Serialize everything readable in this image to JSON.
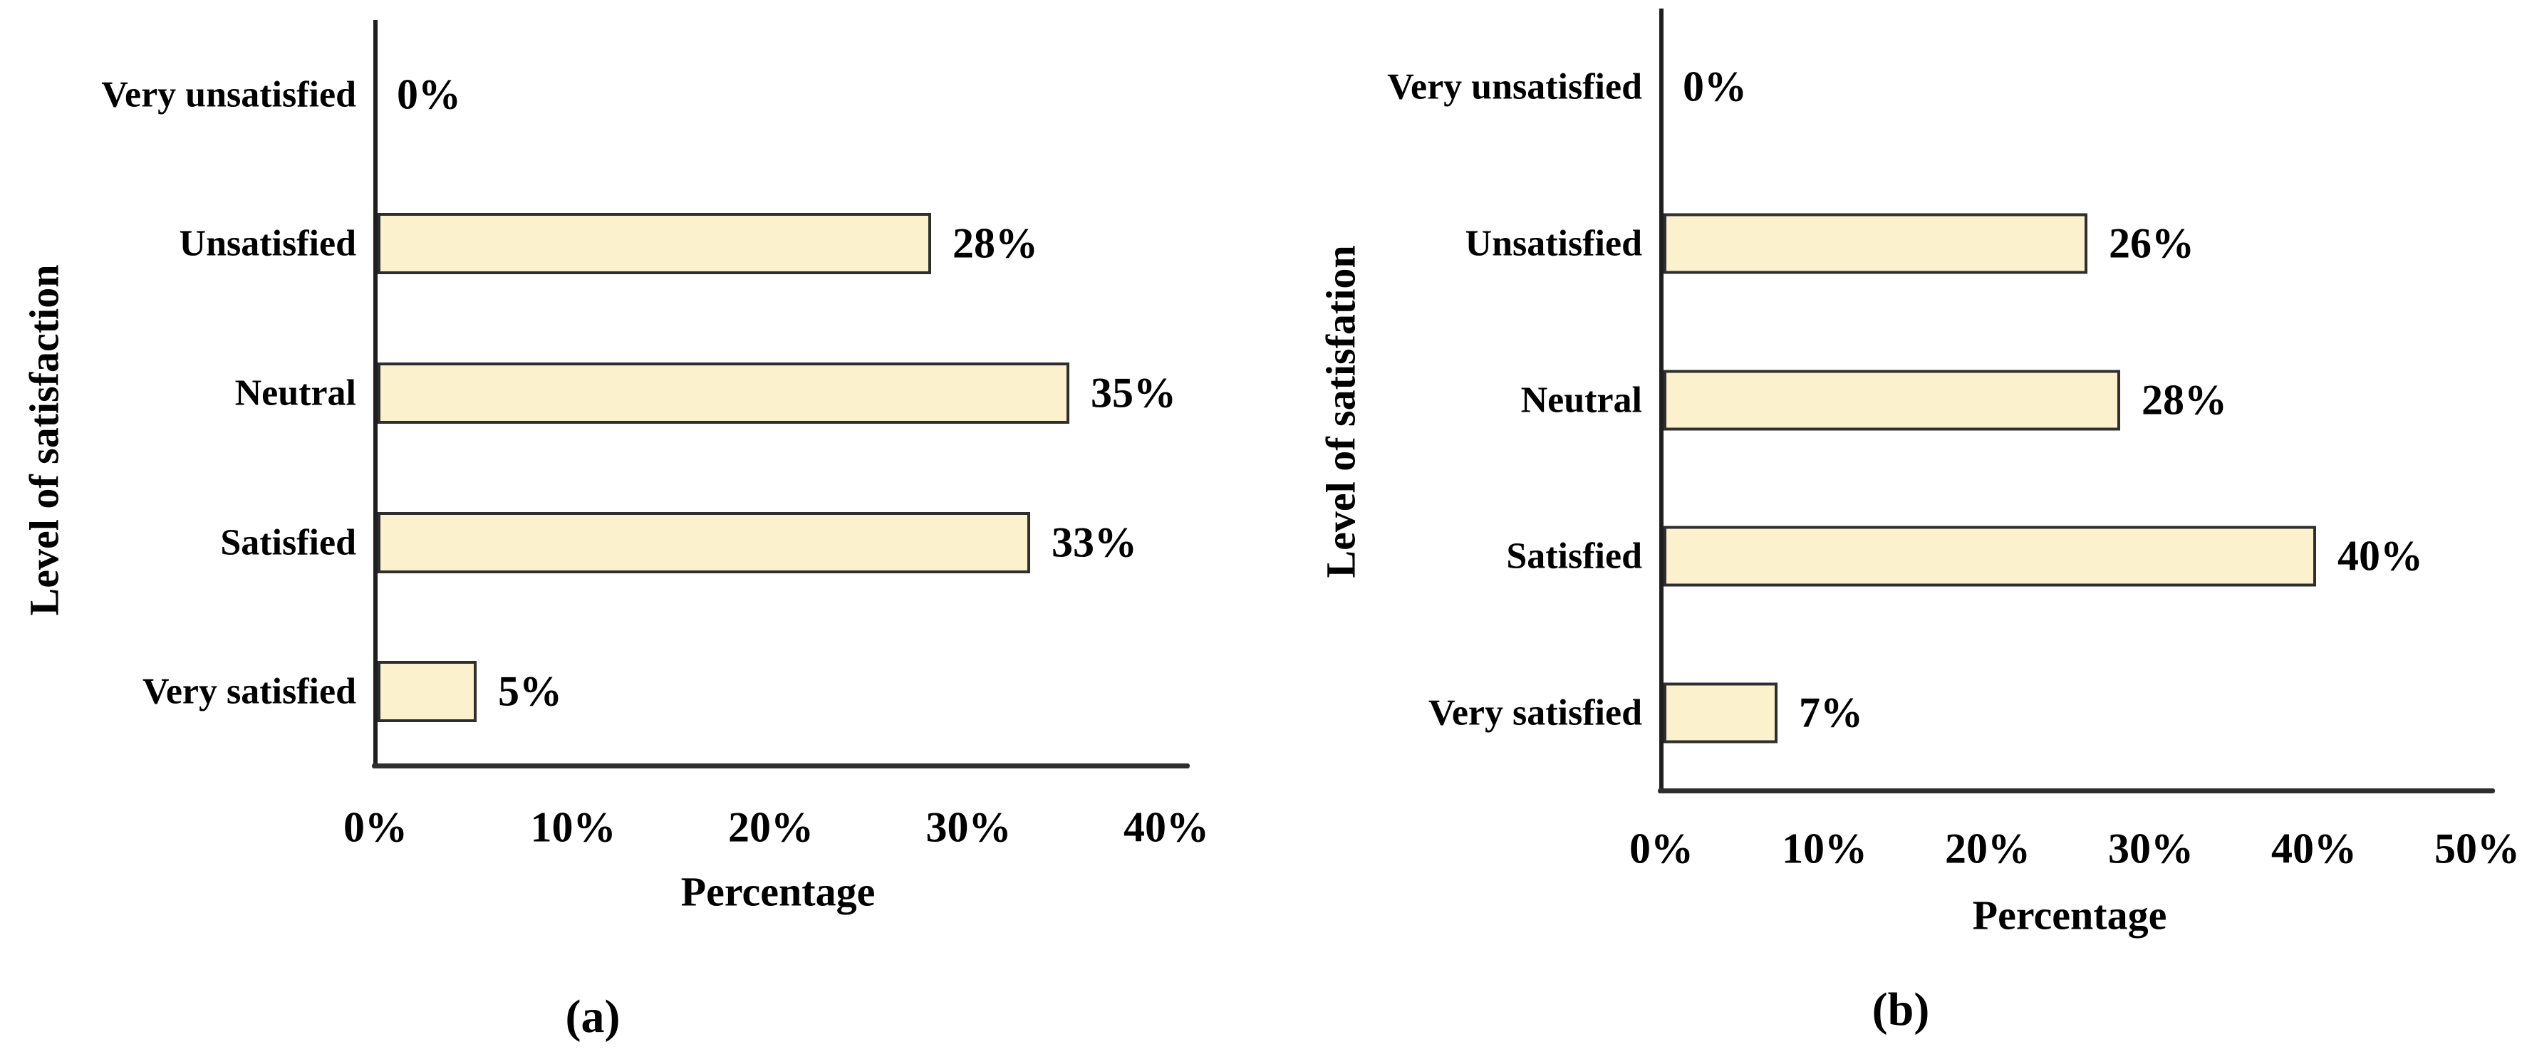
{
  "figure": {
    "background": "#ffffff",
    "text_color": "#000000",
    "bar_fill": "#FBF1CC",
    "bar_border": "#2e2e2e",
    "axis_color": "#1f1f1f"
  },
  "chart_data": [
    {
      "type": "bar",
      "orientation": "horizontal",
      "caption": "(a)",
      "ylabel": "Level of satisfaction",
      "xlabel": "Percentage",
      "categories": [
        "Very unsatisfied",
        "Unsatisfied",
        "Neutral",
        "Satisfied",
        "Very satisfied"
      ],
      "values": [
        0,
        28,
        35,
        33,
        5
      ],
      "value_labels": [
        "0%",
        "28%",
        "35%",
        "33%",
        "5%"
      ],
      "xlim": [
        0,
        40
      ],
      "xtick_values": [
        0,
        10,
        20,
        30,
        40
      ],
      "xtick_labels": [
        "0%",
        "10%",
        "20%",
        "30%",
        "40%"
      ],
      "grid": false,
      "legend": false
    },
    {
      "type": "bar",
      "orientation": "horizontal",
      "caption": "(b)",
      "ylabel": "Level of satisfation",
      "xlabel": "Percentage",
      "categories": [
        "Very unsatisfied",
        "Unsatisfied",
        "Neutral",
        "Satisfied",
        "Very satisfied"
      ],
      "values": [
        0,
        26,
        28,
        40,
        7
      ],
      "value_labels": [
        "0%",
        "26%",
        "28%",
        "40%",
        "7%"
      ],
      "xlim": [
        0,
        50
      ],
      "xtick_values": [
        0,
        10,
        20,
        30,
        40,
        50
      ],
      "xtick_labels": [
        "0%",
        "10%",
        "20%",
        "30%",
        "40%",
        "50%"
      ],
      "grid": false,
      "legend": false
    }
  ]
}
